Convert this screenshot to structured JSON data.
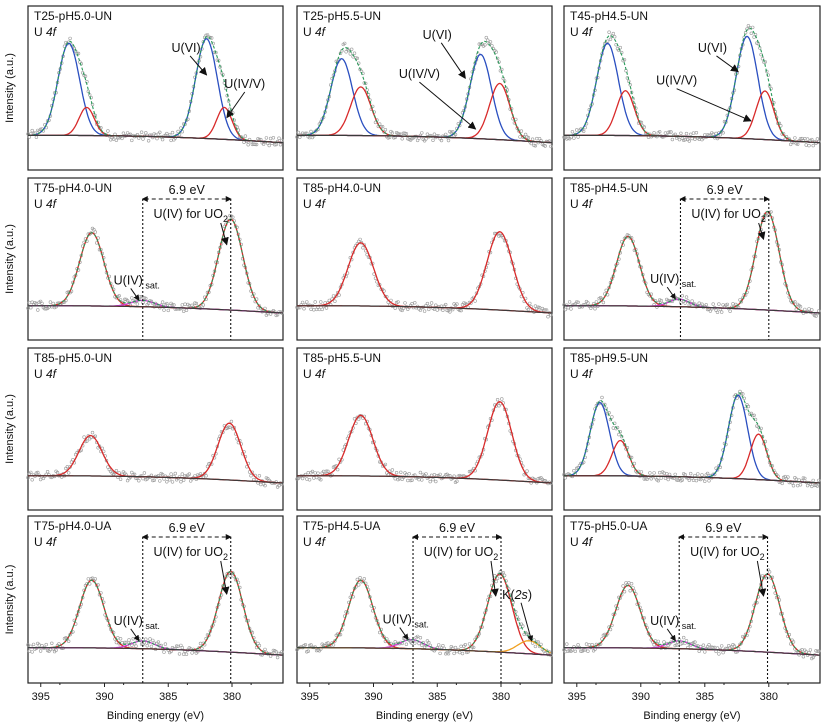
{
  "figure": {
    "y_label": "Intensity (a.u.)",
    "x_label": "Binding energy (eV)",
    "x_ticks": [
      395,
      390,
      385,
      380
    ],
    "sub_label": "U 4f",
    "gap_label": "6.9 eV",
    "colors": {
      "data_points": "#9a9a9a",
      "background": "#3a3a3a",
      "fit": "#2a9a5a",
      "u6": "#2a4fc0",
      "u45": "#d82a2a",
      "u4": "#d82a2a",
      "sat": "#d23ad2",
      "k2s": "#f0a020"
    }
  },
  "chart_data": [
    {
      "type": "line",
      "title": "T25-pH5.0-UN",
      "xlim": [
        396,
        376
      ],
      "labels": [
        "U(VI)",
        "U(IV/V)"
      ],
      "series": [
        {
          "name": "U(VI)",
          "peaks": [
            [
              392.8,
              0.72,
              0.85
            ],
            [
              382.0,
              0.78,
              0.85
            ]
          ]
        },
        {
          "name": "U(IV/V)",
          "peaks": [
            [
              391.4,
              0.22,
              0.6
            ],
            [
              380.6,
              0.25,
              0.6
            ]
          ]
        }
      ]
    },
    {
      "type": "line",
      "title": "T25-pH5.5-UN",
      "xlim": [
        396,
        376
      ],
      "labels": [
        "U(VI)",
        "U(IV/V)"
      ],
      "series": [
        {
          "name": "U(VI)",
          "peaks": [
            [
              392.5,
              0.6,
              0.85
            ],
            [
              381.6,
              0.66,
              0.85
            ]
          ]
        },
        {
          "name": "U(IV/V)",
          "peaks": [
            [
              391.0,
              0.38,
              0.8
            ],
            [
              380.1,
              0.44,
              0.8
            ]
          ]
        }
      ]
    },
    {
      "type": "line",
      "title": "T45-pH4.5-UN",
      "xlim": [
        396,
        376
      ],
      "labels": [
        "U(VI)",
        "U(IV/V)"
      ],
      "series": [
        {
          "name": "U(VI)",
          "peaks": [
            [
              392.6,
              0.72,
              0.85
            ],
            [
              381.7,
              0.8,
              0.85
            ]
          ]
        },
        {
          "name": "U(IV/V)",
          "peaks": [
            [
              391.2,
              0.35,
              0.7
            ],
            [
              380.3,
              0.38,
              0.7
            ]
          ]
        }
      ]
    },
    {
      "type": "line",
      "title": "T75-pH4.0-UN",
      "xlim": [
        396,
        376
      ],
      "gap": [
        387.0,
        380.1
      ],
      "labels": [
        "U(IV) for UO",
        "2",
        "U(IV)",
        "sat."
      ],
      "series": [
        {
          "name": "U(IV)",
          "peaks": [
            [
              391.0,
              0.58,
              0.95
            ],
            [
              380.1,
              0.72,
              0.95
            ]
          ]
        },
        {
          "name": "U(IV) sat.",
          "peaks": [
            [
              387.0,
              0.05,
              0.9
            ]
          ]
        }
      ]
    },
    {
      "type": "line",
      "title": "T85-pH4.0-UN",
      "xlim": [
        396,
        376
      ],
      "series": [
        {
          "name": "U(IV)",
          "peaks": [
            [
              391.0,
              0.5,
              1.0
            ],
            [
              380.1,
              0.62,
              1.0
            ]
          ]
        }
      ]
    },
    {
      "type": "line",
      "title": "T85-pH4.5-UN",
      "xlim": [
        396,
        376
      ],
      "gap": [
        386.9,
        380.0
      ],
      "labels": [
        "U(IV) for UO",
        "2",
        "U(IV)",
        "sat."
      ],
      "series": [
        {
          "name": "U(IV)",
          "peaks": [
            [
              391.0,
              0.55,
              0.9
            ],
            [
              380.1,
              0.78,
              0.9
            ]
          ]
        },
        {
          "name": "U(IV) sat.",
          "peaks": [
            [
              387.0,
              0.06,
              0.8
            ]
          ]
        }
      ]
    },
    {
      "type": "line",
      "title": "T85-pH5.0-UN",
      "xlim": [
        396,
        376
      ],
      "series": [
        {
          "name": "U(IV)",
          "peaks": [
            [
              391.1,
              0.32,
              0.9
            ],
            [
              380.2,
              0.45,
              0.9
            ]
          ]
        }
      ]
    },
    {
      "type": "line",
      "title": "T85-pH5.5-UN",
      "xlim": [
        396,
        376
      ],
      "series": [
        {
          "name": "U(IV)",
          "peaks": [
            [
              391.0,
              0.48,
              0.95
            ],
            [
              380.1,
              0.62,
              0.95
            ]
          ]
        }
      ]
    },
    {
      "type": "line",
      "title": "T85-pH9.5-UN",
      "xlim": [
        396,
        376
      ],
      "series": [
        {
          "name": "U(VI)",
          "peaks": [
            [
              393.2,
              0.58,
              0.75
            ],
            [
              382.4,
              0.66,
              0.75
            ]
          ]
        },
        {
          "name": "U(IV/V)",
          "peaks": [
            [
              391.6,
              0.28,
              0.65
            ],
            [
              380.8,
              0.36,
              0.65
            ]
          ]
        }
      ]
    },
    {
      "type": "line",
      "title": "T75-pH4.0-UA",
      "xlim": [
        396,
        376
      ],
      "gap": [
        387.0,
        380.1
      ],
      "labels": [
        "U(IV) for UO",
        "2",
        "U(IV)",
        "sat."
      ],
      "series": [
        {
          "name": "U(IV)",
          "peaks": [
            [
              391.0,
              0.52,
              0.95
            ],
            [
              380.1,
              0.62,
              0.95
            ]
          ]
        },
        {
          "name": "U(IV) sat.",
          "peaks": [
            [
              387.0,
              0.06,
              0.9
            ]
          ]
        }
      ]
    },
    {
      "type": "line",
      "title": "T75-pH4.5-UA",
      "xlim": [
        396,
        376
      ],
      "gap": [
        386.9,
        380.0
      ],
      "labels": [
        "U(IV) for UO",
        "2",
        "U(IV)",
        "sat.",
        "K(",
        "2s",
        ")"
      ],
      "series": [
        {
          "name": "U(IV)",
          "peaks": [
            [
              391.0,
              0.52,
              0.95
            ],
            [
              380.1,
              0.6,
              0.95
            ]
          ]
        },
        {
          "name": "U(IV) sat.",
          "peaks": [
            [
              387.0,
              0.07,
              0.9
            ]
          ]
        },
        {
          "name": "K(2s)",
          "peaks": [
            [
              377.8,
              0.1,
              0.9
            ]
          ]
        }
      ]
    },
    {
      "type": "line",
      "title": "T75-pH5.0-UA",
      "xlim": [
        396,
        376
      ],
      "gap": [
        387.0,
        380.1
      ],
      "labels": [
        "U(IV) for UO",
        "2",
        "U(IV)",
        "sat."
      ],
      "series": [
        {
          "name": "U(IV)",
          "peaks": [
            [
              391.0,
              0.48,
              0.95
            ],
            [
              380.1,
              0.6,
              0.95
            ]
          ]
        },
        {
          "name": "U(IV) sat.",
          "peaks": [
            [
              387.0,
              0.06,
              0.9
            ]
          ]
        }
      ]
    }
  ]
}
